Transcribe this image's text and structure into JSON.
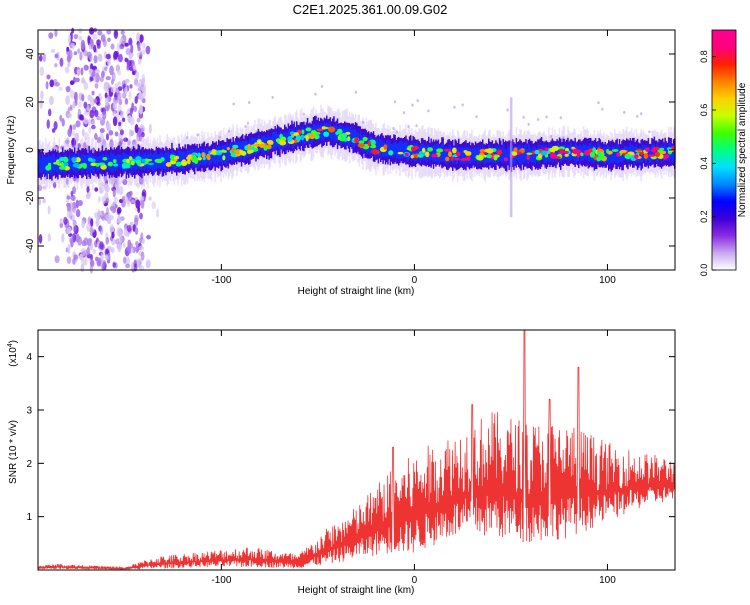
{
  "page_title": "C2E1.2025.361.00.09.G02",
  "chart_data": [
    {
      "type": "heatmap",
      "title": "C2E1.2025.361.00.09.G02",
      "xlabel": "Height of straight line (km)",
      "ylabel": "Frequency (Hz)",
      "xlim": [
        -195,
        135
      ],
      "ylim": [
        -50,
        50
      ],
      "x_ticks": [
        -100,
        0,
        100
      ],
      "y_ticks": [
        -40,
        -20,
        0,
        20,
        40
      ],
      "ridge": {
        "description_points": [
          {
            "x": -195,
            "y": -6
          },
          {
            "x": -150,
            "y": -5
          },
          {
            "x": -120,
            "y": -4
          },
          {
            "x": -100,
            "y": -2
          },
          {
            "x": -80,
            "y": 2
          },
          {
            "x": -60,
            "y": 6
          },
          {
            "x": -45,
            "y": 8
          },
          {
            "x": -35,
            "y": 6
          },
          {
            "x": -20,
            "y": 1
          },
          {
            "x": 0,
            "y": -1
          },
          {
            "x": 20,
            "y": -2
          },
          {
            "x": 50,
            "y": -2
          },
          {
            "x": 80,
            "y": -1
          },
          {
            "x": 100,
            "y": -2
          },
          {
            "x": 135,
            "y": -1
          }
        ],
        "peak_amplitude": 0.9
      },
      "noise_band_x": [
        -180,
        -140
      ],
      "colorbar": {
        "label": "Normalized spectral amplitude",
        "range": [
          0.0,
          0.9
        ],
        "ticks": [
          0.0,
          0.2,
          0.4,
          0.6,
          0.8
        ],
        "colormap": [
          "#ffffff",
          "#c8a8f0",
          "#8a2be2",
          "#3c00d8",
          "#0000ff",
          "#0088ff",
          "#00e0ff",
          "#00ff80",
          "#40ff00",
          "#c8ff00",
          "#ffd000",
          "#ff8000",
          "#ff2000",
          "#ff0080",
          "#ff0090"
        ]
      }
    },
    {
      "type": "line",
      "xlabel": "Height of straight line (km)",
      "ylabel": "SNR (10 * v/v)",
      "y_scale_label": "(x10",
      "y_scale_exp": "4",
      "y_scale_close": ")",
      "xlim": [
        -195,
        135
      ],
      "ylim": [
        0,
        4.5
      ],
      "x_ticks": [
        -100,
        0,
        100
      ],
      "y_ticks": [
        1,
        2,
        3,
        4
      ],
      "line_color": "#ee3333",
      "envelope": [
        {
          "x": -195,
          "low": 0.02,
          "high": 0.08
        },
        {
          "x": -185,
          "low": 0.02,
          "high": 0.12
        },
        {
          "x": -150,
          "low": 0.01,
          "high": 0.05
        },
        {
          "x": -135,
          "low": 0.02,
          "high": 0.25
        },
        {
          "x": -110,
          "low": 0.05,
          "high": 0.35
        },
        {
          "x": -85,
          "low": 0.05,
          "high": 0.45
        },
        {
          "x": -60,
          "low": 0.03,
          "high": 0.3
        },
        {
          "x": -45,
          "low": 0.1,
          "high": 0.8
        },
        {
          "x": -30,
          "low": 0.2,
          "high": 1.2
        },
        {
          "x": -15,
          "low": 0.3,
          "high": 1.8
        },
        {
          "x": 0,
          "low": 0.3,
          "high": 2.2
        },
        {
          "x": 20,
          "low": 0.6,
          "high": 2.6
        },
        {
          "x": 40,
          "low": 0.6,
          "high": 3.0
        },
        {
          "x": 60,
          "low": 0.5,
          "high": 2.8
        },
        {
          "x": 80,
          "low": 0.6,
          "high": 2.8
        },
        {
          "x": 100,
          "low": 0.9,
          "high": 2.4
        },
        {
          "x": 120,
          "low": 1.2,
          "high": 2.2
        },
        {
          "x": 135,
          "low": 1.3,
          "high": 2.1
        }
      ],
      "spikes": [
        {
          "x": 57,
          "y": 4.5
        },
        {
          "x": 85,
          "y": 3.8
        },
        {
          "x": -11,
          "y": 2.3
        },
        {
          "x": 30,
          "y": 3.1
        },
        {
          "x": 70,
          "y": 3.2
        }
      ]
    }
  ]
}
